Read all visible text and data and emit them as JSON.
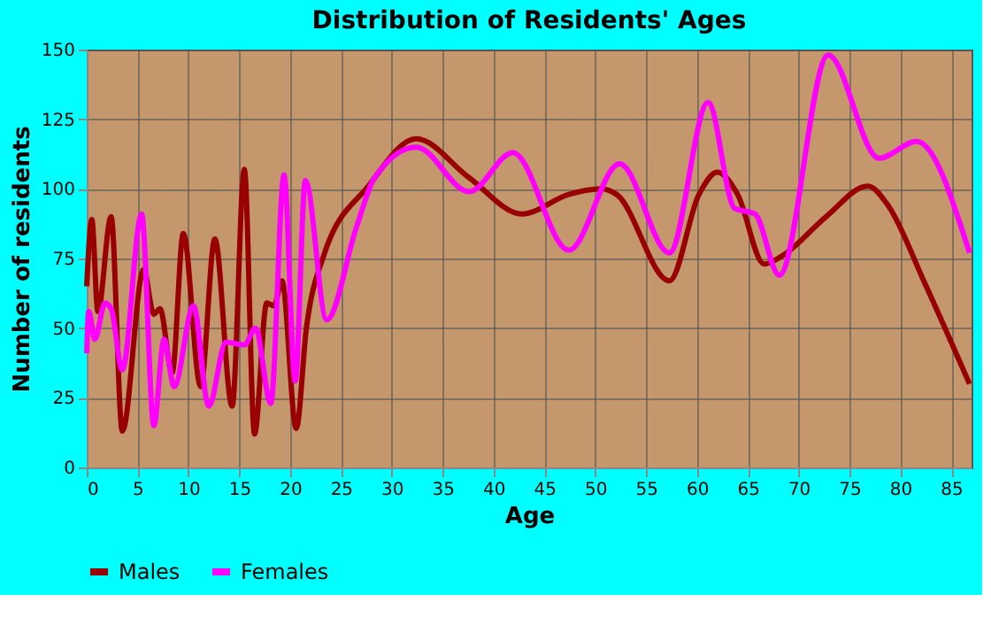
{
  "chart_data": {
    "type": "line",
    "title": "Distribution of Residents' Ages",
    "xlabel": "Age",
    "ylabel": "Number of residents",
    "xlim": [
      0,
      87
    ],
    "xticks": [
      0,
      5,
      10,
      15,
      20,
      25,
      30,
      35,
      40,
      45,
      50,
      55,
      60,
      65,
      70,
      75,
      80,
      85
    ],
    "ylim": [
      0,
      150
    ],
    "yticks": [
      0,
      25,
      50,
      75,
      100,
      125,
      150
    ],
    "grid": true,
    "legend": "bottom",
    "line_style": "solid",
    "marker": "none",
    "series": [
      {
        "name": "Males",
        "color": "#990000",
        "x": [
          0,
          0.5,
          1.1,
          2.4,
          3.5,
          5.6,
          6.6,
          7.2,
          8.4,
          9.5,
          11.2,
          12.6,
          14.3,
          15.5,
          16.5,
          17.7,
          18.4,
          19.2,
          20.6,
          21.6,
          23.3,
          27.7,
          32.4,
          37.6,
          42.8,
          47.4,
          50.6,
          52.1,
          57.3,
          60.2,
          62,
          64,
          66.6,
          68.4,
          72.7,
          76.8,
          78.8,
          82.3,
          86.8
        ],
        "values": [
          65,
          89,
          56,
          90,
          13,
          71,
          55,
          57,
          34,
          84,
          29,
          82,
          22,
          107,
          12,
          59,
          58,
          67,
          14,
          50,
          76,
          101,
          118,
          104,
          91,
          98,
          100,
          98,
          67,
          98,
          106,
          98,
          73,
          76,
          90,
          101,
          94,
          67,
          30
        ]
      },
      {
        "name": "Females",
        "color": "#ff00ff",
        "x": [
          0,
          0.2,
          0.8,
          1.8,
          2.4,
          3.5,
          5.4,
          6.6,
          7.6,
          8.6,
          10.5,
          12,
          13.7,
          15.5,
          16.6,
          18.1,
          19.4,
          20.5,
          21.5,
          23.6,
          26.5,
          28.3,
          32.4,
          37.6,
          41.9,
          47.4,
          52.4,
          57.3,
          61.1,
          63.7,
          65.7,
          68.1,
          72.9,
          77.9,
          81.6,
          86.8
        ],
        "values": [
          41,
          56,
          46,
          59,
          57,
          35,
          91,
          15,
          46,
          29,
          58,
          22,
          45,
          44,
          50,
          23,
          105,
          31,
          103,
          53,
          86,
          104,
          115,
          99,
          113,
          78,
          109,
          77,
          131,
          93,
          91,
          69,
          148,
          111,
          117,
          77
        ]
      }
    ]
  }
}
